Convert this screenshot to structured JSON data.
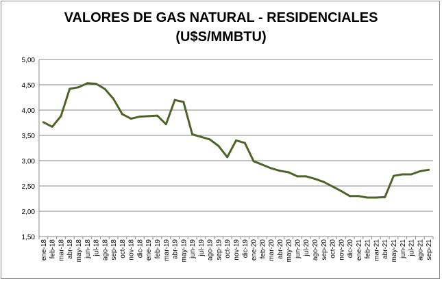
{
  "chart_data": {
    "type": "line",
    "title_line1": "VALORES DE GAS NATURAL - RESIDENCIALES",
    "title_line2": "(U$S/MMBTU)",
    "xlabel": "",
    "ylabel": "",
    "ylim": [
      1.5,
      5.0
    ],
    "yticks": [
      "1,50",
      "2,00",
      "2,50",
      "3,00",
      "3,50",
      "4,00",
      "4,50",
      "5,00"
    ],
    "ytick_values": [
      1.5,
      2.0,
      2.5,
      3.0,
      3.5,
      4.0,
      4.5,
      5.0
    ],
    "grid": true,
    "legend": "none",
    "line_color": "#4f6228",
    "categories": [
      "ene-18",
      "feb-18",
      "mar-18",
      "abr-18",
      "may-18",
      "jun-18",
      "jul-18",
      "ago-18",
      "sep-18",
      "oct-18",
      "nov-18",
      "dic-18",
      "ene-19",
      "feb-19",
      "mar-19",
      "abr-19",
      "may-19",
      "jun-19",
      "jul-19",
      "ago-19",
      "sep-19",
      "oct-19",
      "nov-19",
      "dic-19",
      "ene-20",
      "feb-20",
      "mar-20",
      "abr-20",
      "may-20",
      "jun-20",
      "jul-20",
      "ago-20",
      "sep-20",
      "oct-20",
      "nov-20",
      "dic-20",
      "ene-21",
      "feb-21",
      "mar-21",
      "abr-21",
      "may-21",
      "jun-21",
      "jul-21",
      "ago-21",
      "sep-21"
    ],
    "values": [
      3.76,
      3.67,
      3.88,
      4.42,
      4.45,
      4.53,
      4.52,
      4.42,
      4.22,
      3.92,
      3.83,
      3.87,
      3.88,
      3.89,
      3.72,
      4.2,
      4.16,
      3.52,
      3.47,
      3.42,
      3.29,
      3.07,
      3.4,
      3.35,
      2.99,
      2.92,
      2.85,
      2.8,
      2.77,
      2.69,
      2.69,
      2.64,
      2.58,
      2.49,
      2.4,
      2.3,
      2.3,
      2.27,
      2.27,
      2.28,
      2.7,
      2.73,
      2.73,
      2.79,
      2.82
    ]
  }
}
